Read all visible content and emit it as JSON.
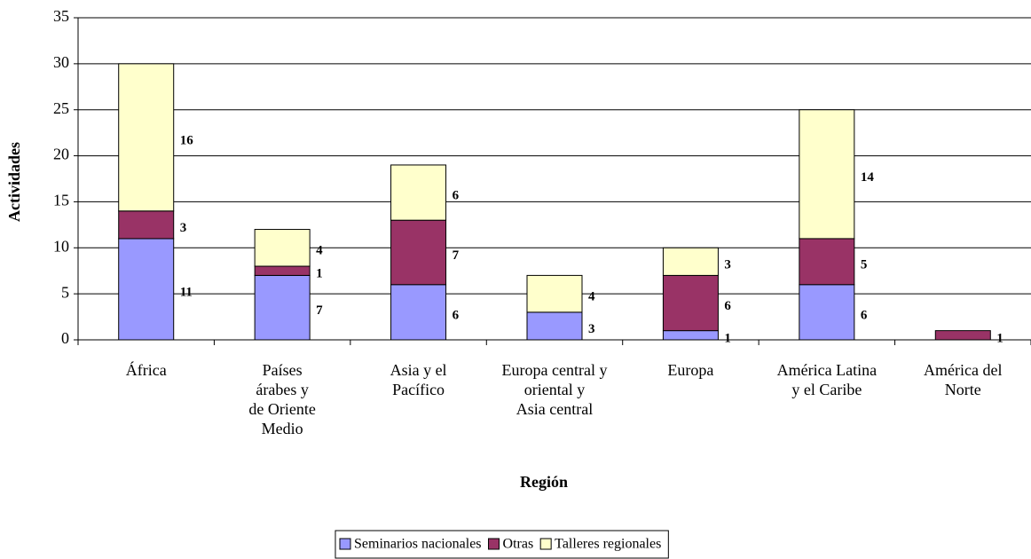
{
  "chart_data": {
    "type": "stacked_bar",
    "ylabel": "Actividades",
    "xlabel": "Región",
    "categories": [
      [
        "África"
      ],
      [
        "Países",
        "árabes y",
        "de Oriente",
        "Medio"
      ],
      [
        "Asia y el",
        "Pacífico"
      ],
      [
        "Europa central y",
        "oriental y",
        "Asia central"
      ],
      [
        "Europa"
      ],
      [
        "América Latina",
        "y el Caribe"
      ],
      [
        "América del",
        "Norte"
      ]
    ],
    "series": [
      {
        "name": "Seminarios nacionales",
        "color": "#9999ff",
        "values": [
          11,
          7,
          6,
          3,
          1,
          6,
          0
        ]
      },
      {
        "name": "Otras",
        "color": "#993366",
        "values": [
          3,
          1,
          7,
          0,
          6,
          5,
          1
        ]
      },
      {
        "name": "Talleres regionales",
        "color": "#ffffcc",
        "values": [
          16,
          4,
          6,
          4,
          3,
          14,
          0
        ]
      }
    ],
    "ylim": [
      0,
      35
    ],
    "yticks": [
      0,
      5,
      10,
      15,
      20,
      25,
      30,
      35
    ],
    "grid": true,
    "legend": "bottom"
  }
}
